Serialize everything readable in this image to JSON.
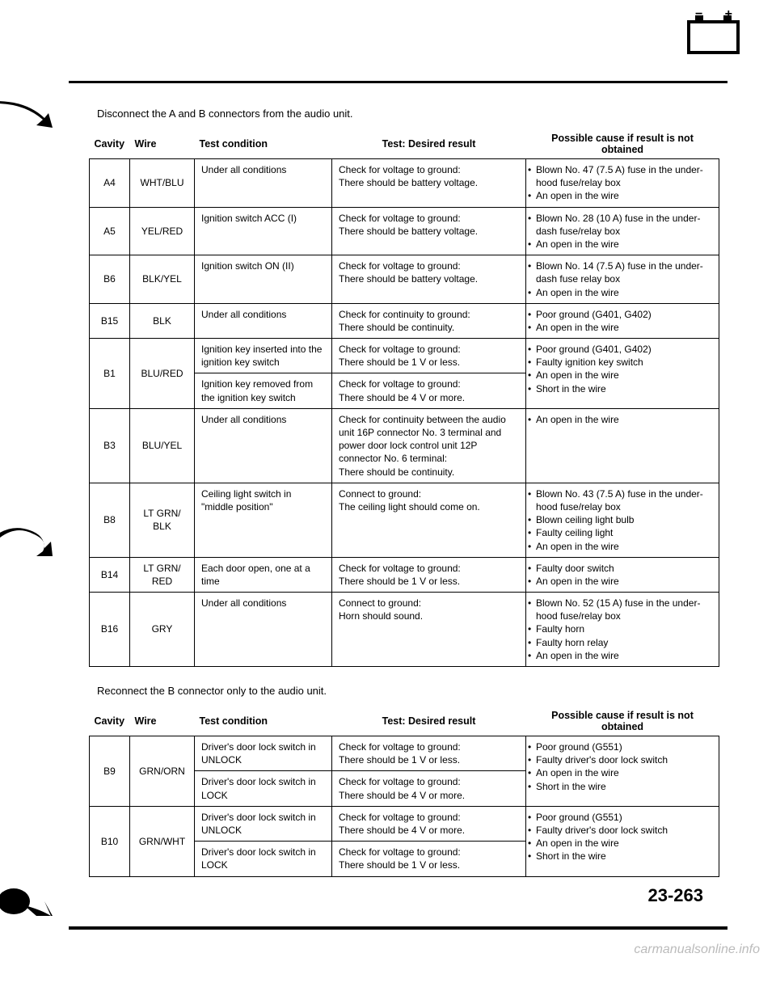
{
  "instruction_1": "Disconnect the A and B connectors from the audio unit.",
  "instruction_2": "Reconnect the B connector only to the audio unit.",
  "headers": {
    "cavity": "Cavity",
    "wire": "Wire",
    "condition": "Test condition",
    "result": "Test: Desired result",
    "cause": "Possible cause if result is not obtained"
  },
  "table1": [
    {
      "cavity": "A4",
      "wire": "WHT/BLU",
      "tests": [
        {
          "cond": "Under all conditions",
          "result": "Check for voltage to ground:\nThere should be battery voltage."
        }
      ],
      "causes": [
        "Blown No. 47 (7.5 A) fuse in the under-hood fuse/relay box",
        "An open in the wire"
      ]
    },
    {
      "cavity": "A5",
      "wire": "YEL/RED",
      "tests": [
        {
          "cond": "Ignition switch ACC (I)",
          "result": "Check for voltage to ground:\nThere should be battery voltage."
        }
      ],
      "causes": [
        "Blown No. 28 (10 A) fuse in the under-dash fuse/relay box",
        "An open in the wire"
      ]
    },
    {
      "cavity": "B6",
      "wire": "BLK/YEL",
      "tests": [
        {
          "cond": "Ignition switch ON (II)",
          "result": "Check for voltage to ground:\nThere should be battery voltage."
        }
      ],
      "causes": [
        "Blown No. 14 (7.5 A) fuse in the under-dash fuse relay box",
        "An open in the wire"
      ]
    },
    {
      "cavity": "B15",
      "wire": "BLK",
      "tests": [
        {
          "cond": "Under all conditions",
          "result": "Check for continuity to ground:\nThere should be continuity."
        }
      ],
      "causes": [
        "Poor ground (G401, G402)",
        "An open in the wire"
      ]
    },
    {
      "cavity": "B1",
      "wire": "BLU/RED",
      "tests": [
        {
          "cond": "Ignition key inserted into the ignition key switch",
          "result": "Check for voltage to ground:\nThere should be 1 V or less."
        },
        {
          "cond": "Ignition key removed from the ignition key switch",
          "result": "Check for voltage to ground:\nThere should be 4 V or more."
        }
      ],
      "causes": [
        "Poor ground (G401, G402)",
        "Faulty ignition key switch",
        "An open in the wire",
        "Short in the wire"
      ]
    },
    {
      "cavity": "B3",
      "wire": "BLU/YEL",
      "tests": [
        {
          "cond": "Under all conditions",
          "result": "Check for continuity between the audio unit 16P connector No. 3 terminal and power door lock control unit 12P connector No. 6 terminal:\nThere should be continuity."
        }
      ],
      "causes": [
        "An open in the wire"
      ]
    },
    {
      "cavity": "B8",
      "wire": "LT GRN/ BLK",
      "tests": [
        {
          "cond": "Ceiling light switch in \"middle position\"",
          "result": "Connect to ground:\nThe ceiling light should come on."
        }
      ],
      "causes": [
        "Blown No. 43 (7.5 A) fuse in the under-hood fuse/relay box",
        "Blown ceiling light bulb",
        "Faulty ceiling light",
        "An open in the wire"
      ]
    },
    {
      "cavity": "B14",
      "wire": "LT GRN/ RED",
      "tests": [
        {
          "cond": "Each door open, one at a time",
          "result": "Check for voltage to ground:\nThere should be 1 V or less."
        }
      ],
      "causes": [
        "Faulty door switch",
        "An open in the wire"
      ]
    },
    {
      "cavity": "B16",
      "wire": "GRY",
      "tests": [
        {
          "cond": "Under all conditions",
          "result": "Connect to ground:\nHorn should sound."
        }
      ],
      "causes": [
        "Blown No. 52 (15 A) fuse in the under-hood fuse/relay box",
        "Faulty horn",
        "Faulty horn relay",
        "An open in the wire"
      ]
    }
  ],
  "table2": [
    {
      "cavity": "B9",
      "wire": "GRN/ORN",
      "tests": [
        {
          "cond": "Driver's door lock switch in UNLOCK",
          "result": "Check for voltage to ground:\nThere should be 1 V or less."
        },
        {
          "cond": "Driver's door lock switch in LOCK",
          "result": "Check for voltage to ground:\nThere should be 4 V or more."
        }
      ],
      "causes": [
        "Poor ground (G551)",
        "Faulty driver's door lock switch",
        "An open in the wire",
        "Short in the wire"
      ]
    },
    {
      "cavity": "B10",
      "wire": "GRN/WHT",
      "tests": [
        {
          "cond": "Driver's door lock switch in UNLOCK",
          "result": "Check for voltage to ground:\nThere should be 4 V or more."
        },
        {
          "cond": "Driver's door lock switch in LOCK",
          "result": "Check for voltage to ground:\nThere should be 1 V or less."
        }
      ],
      "causes": [
        "Poor ground (G551)",
        "Faulty driver's door lock switch",
        "An open in the wire",
        "Short in the wire"
      ]
    }
  ],
  "page_num": "23-263",
  "watermark": "carmanualsonline.info"
}
